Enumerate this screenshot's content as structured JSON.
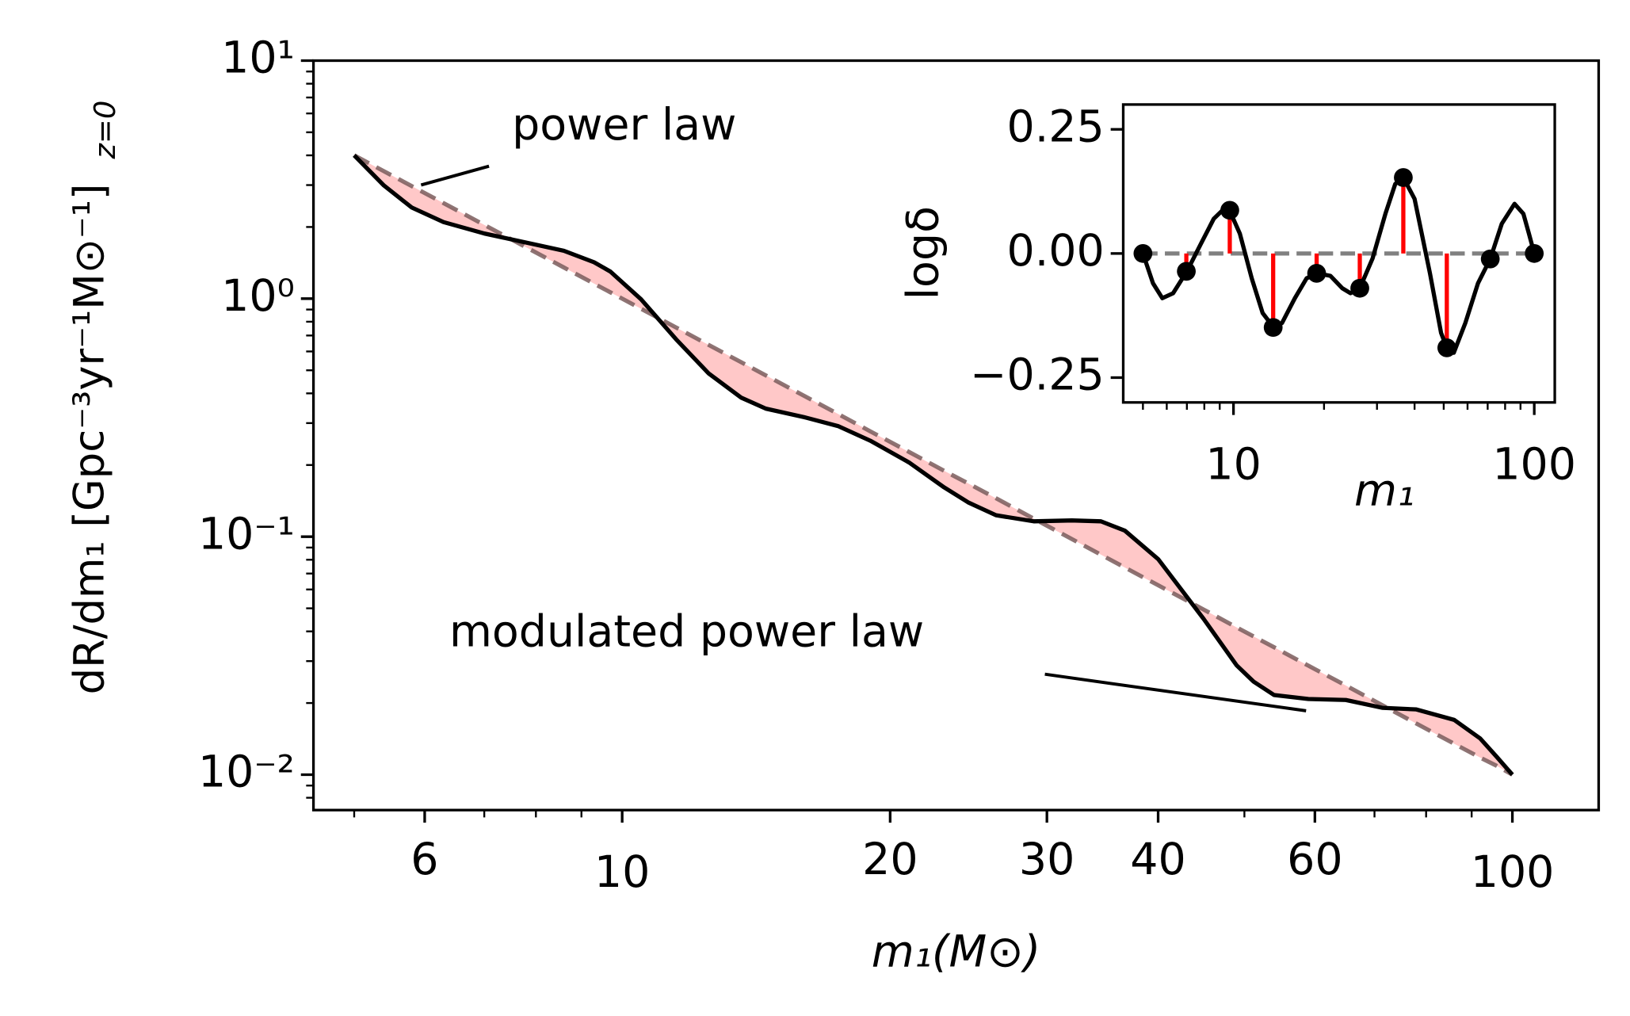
{
  "chart_data": [
    {
      "type": "line",
      "x_label": "m₁(M⊙)",
      "y_label": "dR/dm₁ [Gpc⁻³yr⁻¹M⊙⁻¹]",
      "y_label_subscript": "z=0",
      "log_x": true,
      "log_y": true,
      "xlim": [
        4.5,
        125
      ],
      "ylim": [
        0.0071,
        10
      ],
      "xticks": [
        6,
        10,
        20,
        30,
        40,
        60,
        100
      ],
      "xminor_ticks": [
        5,
        7,
        8,
        9,
        50,
        70,
        80,
        90
      ],
      "yticks": [
        {
          "value": 0.01,
          "label": "10⁻²"
        },
        {
          "value": 0.1,
          "label": "10⁻¹"
        },
        {
          "value": 1,
          "label": "10⁰"
        },
        {
          "value": 10,
          "label": "10¹"
        }
      ],
      "yminor_ticks": [
        0.008,
        0.009,
        0.02,
        0.03,
        0.04,
        0.05,
        0.06,
        0.07,
        0.08,
        0.09,
        0.2,
        0.3,
        0.4,
        0.5,
        0.6,
        0.7,
        0.8,
        0.9,
        2,
        3,
        4,
        5,
        6,
        7,
        8,
        9
      ],
      "x": [
        5,
        5.4,
        5.8,
        6.3,
        7,
        7.8,
        8.6,
        9.3,
        9.7,
        10.5,
        11.5,
        12.5,
        13.6,
        14.5,
        16,
        17.5,
        19,
        21,
        23,
        24.5,
        26.3,
        29,
        32,
        34.5,
        36.7,
        40,
        45,
        49,
        51.2,
        54,
        59,
        65,
        71.4,
        78,
        86,
        92,
        96,
        100
      ],
      "series": [
        {
          "name": "power law",
          "color": "#7a5c5c",
          "dashed": true,
          "values": [
            4,
            3.429,
            2.973,
            2.52,
            2.041,
            1.644,
            1.352,
            1.156,
            1.063,
            0.907,
            0.756,
            0.64,
            0.541,
            0.476,
            0.391,
            0.327,
            0.277,
            0.227,
            0.189,
            0.167,
            0.145,
            0.119,
            0.0977,
            0.084,
            0.0742,
            0.0625,
            0.0494,
            0.0416,
            0.0381,
            0.0343,
            0.0287,
            0.0237,
            0.0196,
            0.0164,
            0.0135,
            0.0118,
            0.0109,
            0.01
          ]
        },
        {
          "name": "modulated power law",
          "color": "#000000",
          "dashed": false,
          "values": [
            4,
            2.987,
            2.417,
            2.097,
            1.878,
            1.721,
            1.589,
            1.422,
            1.299,
            0.994,
            0.674,
            0.486,
            0.384,
            0.345,
            0.318,
            0.291,
            0.253,
            0.205,
            0.161,
            0.139,
            0.123,
            0.116,
            0.117,
            0.116,
            0.106,
            0.0805,
            0.0451,
            0.0288,
            0.0246,
            0.0216,
            0.0208,
            0.0206,
            0.0191,
            0.0188,
            0.017,
            0.0142,
            0.0119,
            0.01
          ]
        }
      ],
      "fill_color": "#ffc8c8"
    },
    {
      "type": "stem",
      "x_label": "m₁",
      "y_label": "logδ",
      "log_x": true,
      "xlim": [
        4.3,
        117
      ],
      "ylim": [
        -0.3,
        0.3
      ],
      "xticks": [
        10,
        100
      ],
      "xminor_ticks": [
        5,
        6,
        7,
        8,
        9,
        20,
        30,
        40,
        50,
        60,
        70,
        80,
        90
      ],
      "yticks": [
        {
          "value": -0.25,
          "label": "−0.25"
        },
        {
          "value": 0,
          "label": "0.00"
        },
        {
          "value": 0.25,
          "label": "0.25"
        }
      ],
      "x": [
        5,
        5.4,
        5.8,
        6.3,
        7,
        7.8,
        8.6,
        9.3,
        9.7,
        10.5,
        11.5,
        12.5,
        13.6,
        14.5,
        16,
        17.5,
        19,
        21,
        23,
        24.5,
        26.3,
        29,
        32,
        34.5,
        36.7,
        40,
        45,
        49,
        51.2,
        54,
        59,
        65,
        71.4,
        78,
        86,
        92,
        96,
        100
      ],
      "series": [
        {
          "color": "#000000",
          "values": [
            0,
            -0.06,
            -0.09,
            -0.08,
            -0.036,
            0.02,
            0.07,
            0.09,
            0.087,
            0.04,
            -0.05,
            -0.12,
            -0.149,
            -0.14,
            -0.09,
            -0.05,
            -0.04,
            -0.045,
            -0.07,
            -0.08,
            -0.07,
            -0.01,
            0.08,
            0.14,
            0.153,
            0.11,
            -0.04,
            -0.16,
            -0.19,
            -0.2,
            -0.14,
            -0.06,
            -0.011,
            0.06,
            0.1,
            0.08,
            0.04,
            0
          ]
        }
      ],
      "knots": {
        "x": [
          5,
          6.97,
          9.72,
          13.55,
          18.9,
          26.3,
          36.7,
          51.2,
          71.4,
          100
        ],
        "values": [
          0,
          -0.036,
          0.087,
          -0.149,
          -0.04,
          -0.07,
          0.153,
          -0.19,
          -0.011,
          0
        ],
        "color": "#000000",
        "stem_color": "#ff0000"
      },
      "baseline": 0,
      "baseline_color": "#808080"
    }
  ]
}
